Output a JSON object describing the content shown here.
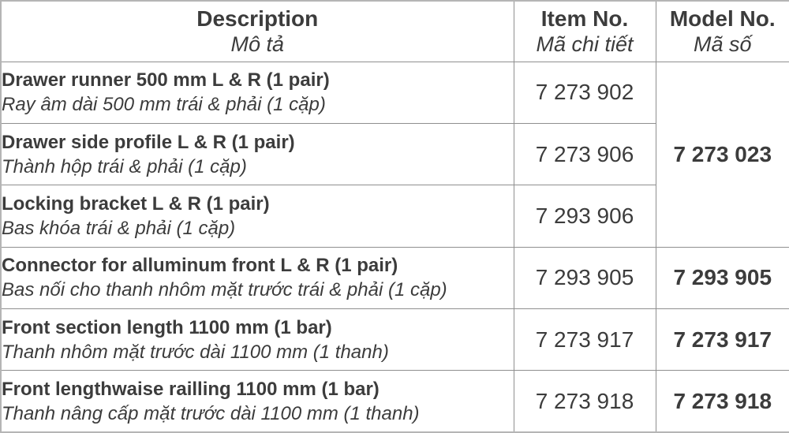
{
  "table": {
    "columns": {
      "description": {
        "en": "Description",
        "vi": "Mô tả"
      },
      "item_no": {
        "en": "Item No.",
        "vi": "Mã chi tiết"
      },
      "model_no": {
        "en": "Model No.",
        "vi": "Mã số"
      }
    },
    "rows": [
      {
        "desc_en": "Drawer runner 500 mm L & R (1 pair)",
        "desc_vi": "Ray âm dài 500 mm trái & phải (1 cặp)",
        "item_no": "7 273 902",
        "model_no": "7 273 023"
      },
      {
        "desc_en": "Drawer side profile L & R (1 pair)",
        "desc_vi": "Thành hộp trái & phải (1 cặp)",
        "item_no": "7 273 906",
        "model_no": ""
      },
      {
        "desc_en": "Locking bracket L & R (1 pair)",
        "desc_vi": "Bas khóa trái & phải (1 cặp)",
        "item_no": "7 293 906",
        "model_no": ""
      },
      {
        "desc_en": "Connector for alluminum front L & R (1 pair)",
        "desc_vi": "Bas nối cho thanh nhôm mặt trước trái & phải (1 cặp)",
        "item_no": "7 293 905",
        "model_no": "7 293 905"
      },
      {
        "desc_en": "Front section length 1100 mm (1 bar)",
        "desc_vi": "Thanh nhôm mặt trước dài 1100 mm (1 thanh)",
        "item_no": "7 273 917",
        "model_no": "7 273 917"
      },
      {
        "desc_en": "Front lengthwaise railling 1100 mm (1 bar)",
        "desc_vi": "Thanh nâng cấp mặt trước dài 1100 mm (1 thanh)",
        "item_no": "7 273 918",
        "model_no": "7 273 918"
      }
    ],
    "colors": {
      "text": "#3c3c3c",
      "inner_border": "#8f8f8f",
      "outer_border": "#b5b5b5",
      "background": "#ffffff"
    }
  }
}
